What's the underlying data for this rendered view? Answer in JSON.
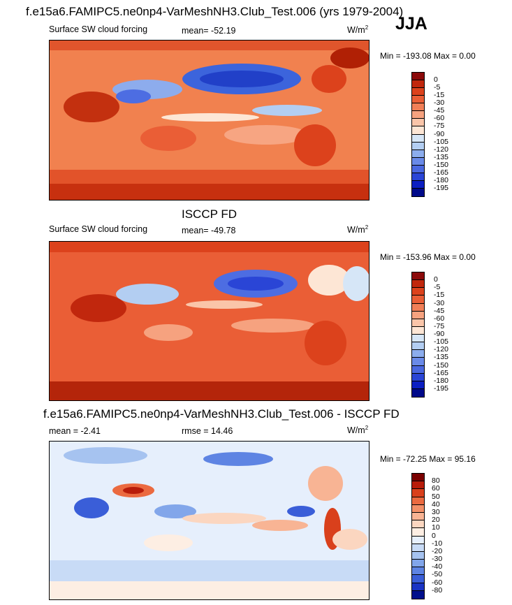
{
  "season": "JJA",
  "panels": [
    {
      "title": "f.e15a6.FAMIPC5.ne0np4-VarMeshNH3.Club_Test.006 (yrs 1979-2004)",
      "left_label": "Surface SW cloud forcing",
      "mean_label": "mean= -52.19",
      "units_base": "W/m",
      "units_exp": "2",
      "minmax": "Min = -193.08 Max =   0.00",
      "colorbar_levels": [
        "0",
        "-5",
        "-15",
        "-30",
        "-45",
        "-60",
        "-75",
        "-90",
        "-105",
        "-120",
        "-135",
        "-150",
        "-165",
        "-180",
        "-195"
      ]
    },
    {
      "title": "ISCCP FD",
      "left_label": "Surface SW cloud forcing",
      "mean_label": "mean= -49.78",
      "units_base": "W/m",
      "units_exp": "2",
      "minmax": "Min = -153.96 Max =   0.00",
      "colorbar_levels": [
        "0",
        "-5",
        "-15",
        "-30",
        "-45",
        "-60",
        "-75",
        "-90",
        "-105",
        "-120",
        "-135",
        "-150",
        "-165",
        "-180",
        "-195"
      ]
    },
    {
      "title": "f.e15a6.FAMIPC5.ne0np4-VarMeshNH3.Club_Test.006 - ISCCP FD",
      "left_label": "mean =  -2.41",
      "mean_label": "rmse =  14.46",
      "units_base": "W/m",
      "units_exp": "2",
      "minmax": "Min = -72.25 Max =  95.16",
      "colorbar_levels": [
        "80",
        "60",
        "50",
        "40",
        "30",
        "20",
        "10",
        "0",
        "-10",
        "-20",
        "-30",
        "-40",
        "-50",
        "-60",
        "-80"
      ]
    }
  ],
  "colors": {
    "forcing_scale": [
      "#8b0a0a",
      "#c1270d",
      "#dc421c",
      "#ea5e36",
      "#f17f57",
      "#f6a27f",
      "#fac5a9",
      "#fde6d5",
      "#d6e6f7",
      "#b3cef2",
      "#8caded",
      "#6a8ae8",
      "#4a68e0",
      "#2a45d6",
      "#0c1fc2",
      "#000a8a"
    ],
    "diff_scale": [
      "#7a0000",
      "#b81c0a",
      "#d9401c",
      "#eb6a40",
      "#f39068",
      "#f8b494",
      "#fbd6c0",
      "#fdeee3",
      "#e6effc",
      "#c8dbf6",
      "#a6c3f0",
      "#82a6ea",
      "#5e84e3",
      "#3a5ed8",
      "#1a34c4",
      "#000f8c"
    ]
  },
  "chart_data": [
    {
      "type": "heatmap",
      "title": "f.e15a6.FAMIPC5.ne0np4-VarMeshNH3.Club_Test.006 (yrs 1979-2004)",
      "variable": "Surface SW cloud forcing",
      "season": "JJA",
      "mean": -52.19,
      "min": -193.08,
      "max": 0.0,
      "units": "W/m2",
      "contour_levels": [
        0,
        -5,
        -15,
        -30,
        -45,
        -60,
        -75,
        -90,
        -105,
        -120,
        -135,
        -150,
        -165,
        -180,
        -195
      ]
    },
    {
      "type": "heatmap",
      "title": "ISCCP FD",
      "variable": "Surface SW cloud forcing",
      "season": "JJA",
      "mean": -49.78,
      "min": -153.96,
      "max": 0.0,
      "units": "W/m2",
      "contour_levels": [
        0,
        -5,
        -15,
        -30,
        -45,
        -60,
        -75,
        -90,
        -105,
        -120,
        -135,
        -150,
        -165,
        -180,
        -195
      ]
    },
    {
      "type": "heatmap",
      "title": "f.e15a6.FAMIPC5.ne0np4-VarMeshNH3.Club_Test.006 - ISCCP FD",
      "season": "JJA",
      "mean": -2.41,
      "rmse": 14.46,
      "min": -72.25,
      "max": 95.16,
      "units": "W/m2",
      "contour_levels": [
        80,
        60,
        50,
        40,
        30,
        20,
        10,
        0,
        -10,
        -20,
        -30,
        -40,
        -50,
        -60,
        -80
      ]
    }
  ]
}
